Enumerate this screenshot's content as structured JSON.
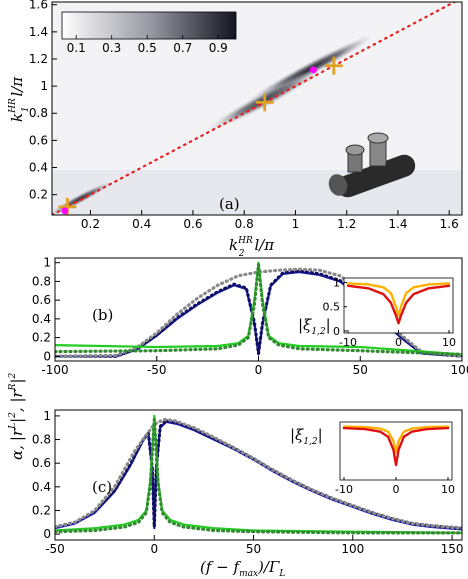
{
  "chart_data": [
    {
      "panel": "(a)",
      "type": "heatmap",
      "xlabel_main": "k",
      "xlabel_sup": "HR",
      "xlabel_sub": "2",
      "xlabel_rest": "l/π",
      "ylabel_main": "k",
      "ylabel_sup": "HR",
      "ylabel_sub": "1",
      "ylabel_rest": "l/π",
      "xlim": [
        0.05,
        1.65
      ],
      "ylim": [
        0.05,
        1.62
      ],
      "xticks": [
        0.2,
        0.4,
        0.6,
        0.8,
        1,
        1.2,
        1.4,
        1.6
      ],
      "yticks": [
        0.2,
        0.4,
        0.6,
        0.8,
        1,
        1.2,
        1.4,
        1.6
      ],
      "colorbar_ticks": [
        0.1,
        0.3,
        0.5,
        0.7,
        0.9
      ],
      "colorbar_range": [
        0.02,
        1
      ],
      "diagonal_color": "#e62020",
      "cross_points": [
        [
          0.11,
          0.11
        ],
        [
          0.88,
          0.88
        ],
        [
          1.15,
          1.15
        ]
      ],
      "magenta_points": [
        [
          0.1,
          0.08
        ],
        [
          1.07,
          1.12
        ]
      ],
      "cross_color": "#e0a020",
      "magenta_color": "#ff00ff",
      "dark_lobes": [
        {
          "cx": 1.06,
          "cy": 1.13,
          "dx": 0.2,
          "dy": 0.045,
          "peak": 0.95
        },
        {
          "cx": 0.88,
          "cy": 0.9,
          "dx": 0.18,
          "dy": 0.05,
          "peak": 0.85
        },
        {
          "cx": 0.16,
          "cy": 0.17,
          "dx": 0.1,
          "dy": 0.03,
          "peak": 0.9
        }
      ]
    },
    {
      "panel": "(b)",
      "type": "line",
      "xlim": [
        -100,
        100
      ],
      "ylim": [
        -0.05,
        1.05
      ],
      "xticks": [
        -100,
        -50,
        0,
        50,
        100
      ],
      "yticks": [
        0,
        0.2,
        0.4,
        0.6,
        0.8,
        1
      ],
      "series": [
        {
          "color": "#1a1ab3",
          "style": "solid",
          "x": [
            -100,
            -70,
            -60,
            -50,
            -40,
            -30,
            -20,
            -12,
            -6,
            -2,
            0,
            2,
            6,
            12,
            20,
            30,
            40,
            50,
            60,
            70,
            80,
            100
          ],
          "y": [
            0,
            0.0,
            0.07,
            0.22,
            0.4,
            0.55,
            0.68,
            0.76,
            0.72,
            0.35,
            0.02,
            0.35,
            0.75,
            0.88,
            0.9,
            0.87,
            0.8,
            0.63,
            0.4,
            0.2,
            0.03,
            0
          ]
        },
        {
          "color": "#101060",
          "style": "dotted",
          "x": [
            -100,
            -70,
            -60,
            -50,
            -40,
            -30,
            -20,
            -12,
            -6,
            -2,
            0,
            2,
            6,
            12,
            20,
            30,
            40,
            50,
            60,
            70,
            80,
            100
          ],
          "y": [
            0,
            0.0,
            0.08,
            0.23,
            0.41,
            0.56,
            0.69,
            0.77,
            0.73,
            0.36,
            0.03,
            0.36,
            0.76,
            0.89,
            0.91,
            0.88,
            0.81,
            0.64,
            0.41,
            0.21,
            0.04,
            0
          ]
        },
        {
          "color": "#8a8a8a",
          "style": "dotted",
          "x": [
            -100,
            -70,
            -60,
            -50,
            -40,
            -30,
            -20,
            -10,
            0,
            10,
            20,
            30,
            40,
            50,
            60,
            70,
            80,
            100
          ],
          "y": [
            0,
            0.01,
            0.09,
            0.25,
            0.45,
            0.62,
            0.76,
            0.86,
            0.9,
            0.92,
            0.93,
            0.92,
            0.86,
            0.7,
            0.46,
            0.23,
            0.05,
            0
          ]
        },
        {
          "color": "#22cc22",
          "style": "solid",
          "x": [
            -100,
            -50,
            -20,
            -10,
            -5,
            -2,
            0,
            2,
            5,
            10,
            20,
            50,
            100
          ],
          "y": [
            0.12,
            0.1,
            0.11,
            0.14,
            0.22,
            0.6,
            1.0,
            0.6,
            0.22,
            0.14,
            0.11,
            0.1,
            0.02
          ]
        },
        {
          "color": "#338a33",
          "style": "dotted",
          "x": [
            -100,
            -50,
            -20,
            -10,
            -5,
            -2,
            0,
            2,
            5,
            10,
            20,
            50,
            100
          ],
          "y": [
            0.05,
            0.06,
            0.08,
            0.12,
            0.2,
            0.55,
            0.98,
            0.55,
            0.2,
            0.12,
            0.08,
            0.06,
            0.02
          ]
        }
      ],
      "inset": {
        "xlim": [
          -10,
          10
        ],
        "ylim": [
          0,
          1.05
        ],
        "xticks": [
          -10,
          0,
          10
        ],
        "yticks": [
          0,
          0.5,
          1
        ],
        "series": [
          {
            "color": "#ffb000",
            "x": [
              -10,
              -6,
              -3,
              -1.5,
              -0.5,
              0,
              0.5,
              1.5,
              3,
              6,
              10
            ],
            "y": [
              0.98,
              0.96,
              0.9,
              0.78,
              0.5,
              0.32,
              0.5,
              0.78,
              0.9,
              0.96,
              0.98
            ]
          },
          {
            "color": "#dd1111",
            "x": [
              -10,
              -6,
              -3,
              -1.5,
              -0.5,
              0,
              0.5,
              1.5,
              3,
              6,
              10
            ],
            "y": [
              0.93,
              0.88,
              0.76,
              0.58,
              0.32,
              0.16,
              0.32,
              0.58,
              0.76,
              0.88,
              0.93
            ]
          }
        ]
      }
    },
    {
      "panel": "(c)",
      "type": "line",
      "xlim": [
        -50,
        155
      ],
      "ylim": [
        -0.05,
        1.05
      ],
      "xticks": [
        -50,
        0,
        50,
        100,
        150
      ],
      "yticks": [
        0,
        0.2,
        0.4,
        0.6,
        0.8,
        1
      ],
      "series": [
        {
          "color": "#1a1ab3",
          "style": "solid",
          "x": [
            -50,
            -40,
            -30,
            -20,
            -12,
            -6,
            -3,
            -1,
            0,
            1,
            3,
            6,
            12,
            20,
            30,
            40,
            50,
            60,
            70,
            80,
            90,
            100,
            110,
            120,
            130,
            140,
            155
          ],
          "y": [
            0.05,
            0.09,
            0.18,
            0.36,
            0.58,
            0.78,
            0.85,
            0.55,
            0.05,
            0.55,
            0.9,
            0.95,
            0.93,
            0.88,
            0.8,
            0.72,
            0.63,
            0.53,
            0.44,
            0.36,
            0.29,
            0.23,
            0.17,
            0.12,
            0.08,
            0.06,
            0.04
          ]
        },
        {
          "color": "#101060",
          "style": "dotted",
          "x": [
            -50,
            -40,
            -30,
            -20,
            -12,
            -6,
            -3,
            -1,
            0,
            1,
            3,
            6,
            12,
            20,
            30,
            40,
            50,
            60,
            70,
            80,
            90,
            100,
            110,
            120,
            130,
            140,
            155
          ],
          "y": [
            0.06,
            0.1,
            0.19,
            0.37,
            0.59,
            0.79,
            0.86,
            0.56,
            0.06,
            0.56,
            0.91,
            0.96,
            0.94,
            0.89,
            0.81,
            0.73,
            0.64,
            0.54,
            0.45,
            0.37,
            0.3,
            0.24,
            0.18,
            0.13,
            0.09,
            0.07,
            0.05
          ]
        },
        {
          "color": "#8a8a8a",
          "style": "dotted",
          "x": [
            -50,
            -40,
            -30,
            -20,
            -10,
            0,
            5,
            10,
            20,
            30,
            40,
            50,
            60,
            70,
            80,
            90,
            100,
            110,
            120,
            130,
            140,
            155
          ],
          "y": [
            0.06,
            0.1,
            0.2,
            0.4,
            0.7,
            0.93,
            0.97,
            0.96,
            0.9,
            0.82,
            0.73,
            0.64,
            0.54,
            0.45,
            0.37,
            0.3,
            0.24,
            0.18,
            0.13,
            0.09,
            0.07,
            0.05
          ]
        },
        {
          "color": "#22cc22",
          "style": "solid",
          "x": [
            -50,
            -30,
            -15,
            -8,
            -4,
            -2,
            0,
            2,
            4,
            8,
            15,
            30,
            50,
            100,
            155
          ],
          "y": [
            0.03,
            0.05,
            0.08,
            0.12,
            0.2,
            0.45,
            1.0,
            0.45,
            0.2,
            0.12,
            0.08,
            0.05,
            0.03,
            0.02,
            0.01
          ]
        },
        {
          "color": "#338a33",
          "style": "dotted",
          "x": [
            -50,
            -30,
            -15,
            -8,
            -4,
            -2,
            0,
            2,
            4,
            8,
            15,
            30,
            50,
            100,
            155
          ],
          "y": [
            0.02,
            0.03,
            0.06,
            0.1,
            0.18,
            0.42,
            0.97,
            0.42,
            0.18,
            0.1,
            0.06,
            0.03,
            0.02,
            0.01,
            0.01
          ]
        }
      ],
      "inset": {
        "xlim": [
          -10,
          10
        ],
        "ylim": [
          0,
          1.05
        ],
        "xticks": [
          -10,
          0,
          10
        ],
        "yticks": [],
        "series": [
          {
            "color": "#ffb000",
            "x": [
              -10,
              -6,
              -3,
              -1.5,
              -0.5,
              0,
              0.5,
              1.5,
              3,
              6,
              10
            ],
            "y": [
              1.0,
              0.99,
              0.96,
              0.9,
              0.72,
              0.5,
              0.72,
              0.9,
              0.96,
              0.99,
              1.0
            ]
          },
          {
            "color": "#dd1111",
            "x": [
              -10,
              -6,
              -3,
              -1.5,
              -0.5,
              0,
              0.5,
              1.5,
              3,
              6,
              10
            ],
            "y": [
              0.97,
              0.95,
              0.9,
              0.8,
              0.55,
              0.25,
              0.55,
              0.8,
              0.9,
              0.95,
              0.97
            ]
          }
        ]
      }
    }
  ],
  "labels": {
    "panel_a": "(a)",
    "panel_b": "(b)",
    "panel_c": "(c)",
    "b_ylabel_left": "|r",
    "b_ylabel_sup_l": "L",
    "b_ylabel_mid": "|",
    "b_ylabel_sq1": "2",
    "b_ylabel_sep": ", |r",
    "b_ylabel_sup_r": "R",
    "b_ylabel_end": "|",
    "b_ylabel_sq2": "2",
    "alpha": "α,",
    "inset_label": "|ξ",
    "inset_sub": "1,2",
    "inset_end": "|",
    "xlabel_c_open": "(f − f",
    "xlabel_c_sub": "max",
    "xlabel_c_mid": ")/Γ",
    "xlabel_c_sub2": "L"
  }
}
